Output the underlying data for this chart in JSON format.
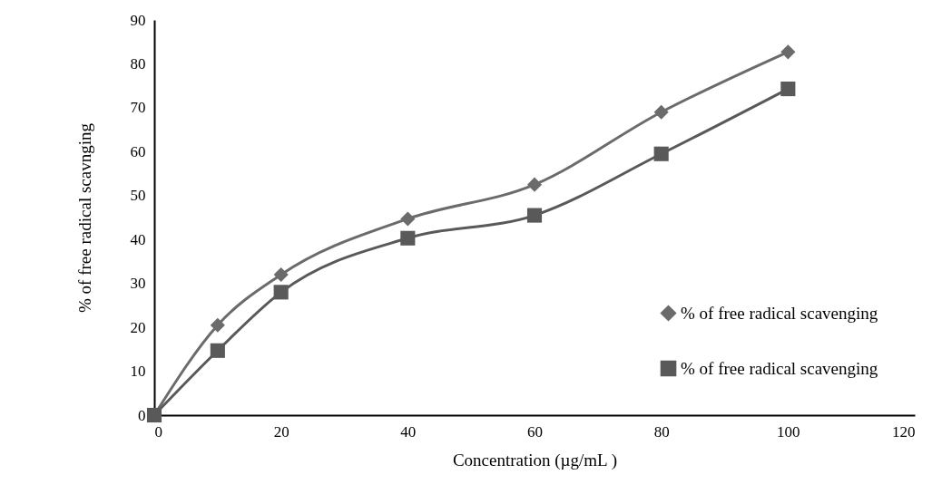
{
  "chart_data": {
    "type": "line",
    "xlabel": "Concentration (µg/mL )",
    "ylabel": "% of free radical scavnging",
    "x": [
      0,
      10,
      20,
      40,
      60,
      80,
      100
    ],
    "series": [
      {
        "name": "% of free radical scavenging",
        "color": "#6b6b6b",
        "marker": "diamond",
        "values": [
          0,
          20.5,
          32,
          44.7,
          52.5,
          69,
          82.7
        ]
      },
      {
        "name": "% of free radical scavenging",
        "color": "#595959",
        "marker": "square",
        "values": [
          0,
          14.7,
          28,
          40.3,
          45.5,
          59.5,
          74.3
        ]
      }
    ],
    "xlim": [
      0,
      120
    ],
    "xticks": [
      0,
      20,
      40,
      60,
      80,
      100,
      120
    ],
    "ylim": [
      0,
      90
    ],
    "yticks": [
      0,
      10,
      20,
      30,
      40,
      50,
      60,
      70,
      80,
      90
    ],
    "grid": false,
    "legend": "bottom right",
    "line_style": "solid"
  }
}
